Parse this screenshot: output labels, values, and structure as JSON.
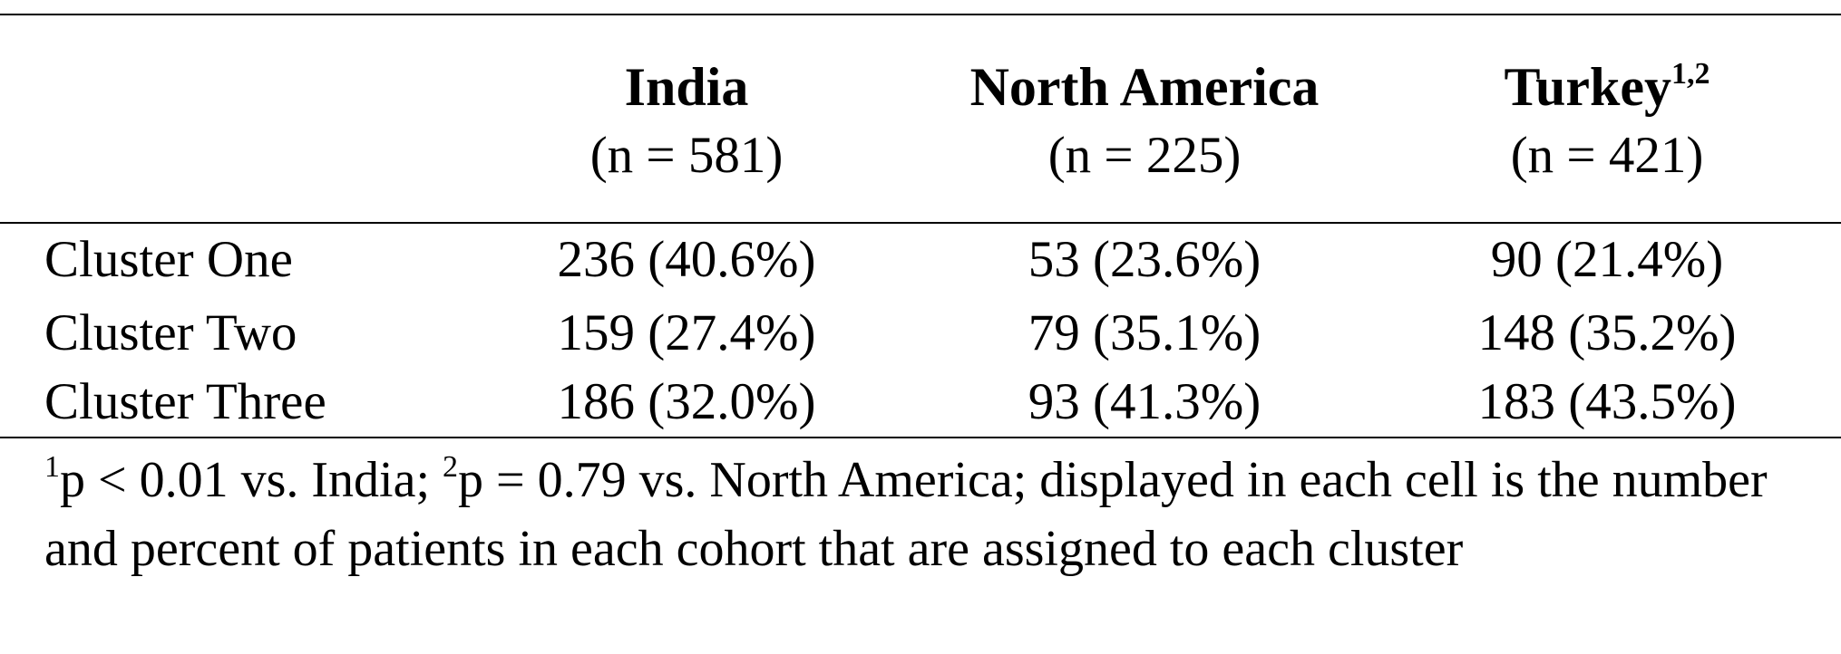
{
  "table": {
    "columns": [
      {
        "name": "India",
        "n": "(n = 581)"
      },
      {
        "name": "North America",
        "n": "(n = 225)"
      },
      {
        "name": "Turkey",
        "sup": "1,2",
        "n": "(n = 421)"
      }
    ],
    "rows": [
      [
        "Cluster One",
        "236 (40.6%)",
        "53 (23.6%)",
        "90 (21.4%)"
      ],
      [
        "Cluster Two",
        "159 (27.4%)",
        "79 (35.1%)",
        "148 (35.2%)"
      ],
      [
        "Cluster Three",
        "186 (32.0%)",
        "93 (41.3%)",
        "183 (43.5%)"
      ]
    ],
    "footnote": [
      {
        "sup": "1"
      },
      {
        "text": "p < 0.01 vs. India; "
      },
      {
        "sup": "2"
      },
      {
        "text": "p = 0.79 vs. North America; displayed in each cell is the number and percent of patients in each cohort that are assigned to each cluster"
      }
    ]
  }
}
